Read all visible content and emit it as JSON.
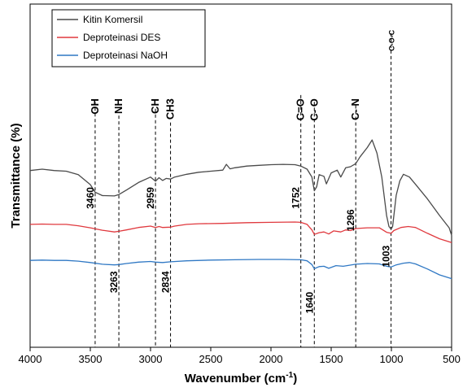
{
  "chart_data": {
    "type": "line",
    "title": "",
    "xlabel": "Wavenumber (cm",
    "xlabel_sup": "-1",
    "xlabel_close": ")",
    "ylabel": "Transmittance (%)",
    "xlim": [
      4000,
      500
    ],
    "x_reversed": true,
    "ylim": [
      0,
      100
    ],
    "x_ticks": [
      4000,
      3500,
      3000,
      2500,
      2000,
      1500,
      1000,
      500
    ],
    "x_tick_labels": [
      "4000",
      "3500",
      "3000",
      "2500",
      "2000",
      "1500",
      "1000",
      "500"
    ],
    "y_ticks_labeled": false,
    "grid": false,
    "legend_position": "top-left",
    "series": [
      {
        "name": "Kitin Komersil",
        "color": "#4a4a4a",
        "points": [
          [
            4000,
            51.5
          ],
          [
            3900,
            51.9
          ],
          [
            3800,
            51.5
          ],
          [
            3700,
            51.3
          ],
          [
            3600,
            50.3
          ],
          [
            3500,
            47.4
          ],
          [
            3460,
            45.2
          ],
          [
            3400,
            44.2
          ],
          [
            3300,
            44.1
          ],
          [
            3263,
            44.5
          ],
          [
            3200,
            45.8
          ],
          [
            3100,
            48.0
          ],
          [
            3000,
            49.6
          ],
          [
            2959,
            48.4
          ],
          [
            2930,
            49.4
          ],
          [
            2900,
            48.6
          ],
          [
            2870,
            49.2
          ],
          [
            2834,
            49.0
          ],
          [
            2800,
            49.6
          ],
          [
            2700,
            50.4
          ],
          [
            2600,
            51.0
          ],
          [
            2500,
            51.3
          ],
          [
            2400,
            51.6
          ],
          [
            2370,
            53.3
          ],
          [
            2340,
            52.0
          ],
          [
            2300,
            52.3
          ],
          [
            2200,
            52.8
          ],
          [
            2100,
            53.0
          ],
          [
            2000,
            53.2
          ],
          [
            1900,
            53.3
          ],
          [
            1800,
            53.2
          ],
          [
            1752,
            52.8
          ],
          [
            1700,
            51.9
          ],
          [
            1660,
            49.6
          ],
          [
            1640,
            45.6
          ],
          [
            1620,
            46.8
          ],
          [
            1600,
            50.3
          ],
          [
            1560,
            49.8
          ],
          [
            1540,
            47.6
          ],
          [
            1500,
            50.8
          ],
          [
            1450,
            51.6
          ],
          [
            1420,
            49.6
          ],
          [
            1380,
            52.3
          ],
          [
            1340,
            52.6
          ],
          [
            1296,
            53.5
          ],
          [
            1260,
            55.5
          ],
          [
            1200,
            58.2
          ],
          [
            1160,
            60.4
          ],
          [
            1120,
            56.6
          ],
          [
            1080,
            49.6
          ],
          [
            1040,
            38.4
          ],
          [
            1020,
            35.2
          ],
          [
            1003,
            34.4
          ],
          [
            990,
            35.2
          ],
          [
            960,
            44.3
          ],
          [
            930,
            48.5
          ],
          [
            900,
            50.4
          ],
          [
            850,
            49.6
          ],
          [
            800,
            47.5
          ],
          [
            700,
            43.2
          ],
          [
            600,
            38.4
          ],
          [
            520,
            34.8
          ],
          [
            500,
            32.6
          ]
        ]
      },
      {
        "name": "Deproteinasi DES",
        "color": "#e0393e",
        "points": [
          [
            4000,
            35.8
          ],
          [
            3900,
            35.9
          ],
          [
            3800,
            35.8
          ],
          [
            3700,
            35.8
          ],
          [
            3600,
            35.4
          ],
          [
            3500,
            34.8
          ],
          [
            3400,
            34.1
          ],
          [
            3300,
            33.6
          ],
          [
            3263,
            33.8
          ],
          [
            3200,
            34.2
          ],
          [
            3100,
            34.9
          ],
          [
            3000,
            35.3
          ],
          [
            2959,
            34.9
          ],
          [
            2930,
            35.2
          ],
          [
            2900,
            34.9
          ],
          [
            2834,
            35.0
          ],
          [
            2800,
            35.3
          ],
          [
            2700,
            35.8
          ],
          [
            2600,
            36.0
          ],
          [
            2400,
            36.1
          ],
          [
            2200,
            36.3
          ],
          [
            2000,
            36.4
          ],
          [
            1800,
            36.5
          ],
          [
            1752,
            36.4
          ],
          [
            1700,
            35.8
          ],
          [
            1660,
            34.2
          ],
          [
            1640,
            32.9
          ],
          [
            1600,
            33.4
          ],
          [
            1560,
            33.6
          ],
          [
            1520,
            33.0
          ],
          [
            1480,
            33.9
          ],
          [
            1420,
            33.6
          ],
          [
            1380,
            34.2
          ],
          [
            1340,
            34.0
          ],
          [
            1296,
            34.6
          ],
          [
            1200,
            34.8
          ],
          [
            1100,
            34.8
          ],
          [
            1040,
            33.5
          ],
          [
            1003,
            33.2
          ],
          [
            980,
            34.0
          ],
          [
            920,
            34.9
          ],
          [
            860,
            35.2
          ],
          [
            800,
            34.9
          ],
          [
            700,
            33.2
          ],
          [
            600,
            31.6
          ],
          [
            500,
            30.5
          ]
        ]
      },
      {
        "name": "Deproteinasi NaOH",
        "color": "#2f78c4",
        "points": [
          [
            4000,
            25.3
          ],
          [
            3900,
            25.4
          ],
          [
            3800,
            25.3
          ],
          [
            3700,
            25.3
          ],
          [
            3600,
            25.1
          ],
          [
            3500,
            24.7
          ],
          [
            3400,
            24.2
          ],
          [
            3300,
            24.0
          ],
          [
            3263,
            24.1
          ],
          [
            3200,
            24.4
          ],
          [
            3100,
            24.8
          ],
          [
            3000,
            25.0
          ],
          [
            2959,
            24.8
          ],
          [
            2900,
            24.7
          ],
          [
            2834,
            24.9
          ],
          [
            2700,
            25.2
          ],
          [
            2500,
            25.4
          ],
          [
            2300,
            25.5
          ],
          [
            2100,
            25.6
          ],
          [
            1900,
            25.6
          ],
          [
            1752,
            25.5
          ],
          [
            1700,
            25.2
          ],
          [
            1660,
            24.1
          ],
          [
            1640,
            22.9
          ],
          [
            1600,
            23.5
          ],
          [
            1560,
            23.6
          ],
          [
            1520,
            23.0
          ],
          [
            1460,
            23.8
          ],
          [
            1400,
            23.6
          ],
          [
            1296,
            24.2
          ],
          [
            1200,
            24.4
          ],
          [
            1100,
            24.3
          ],
          [
            1040,
            23.6
          ],
          [
            1003,
            23.4
          ],
          [
            960,
            24.0
          ],
          [
            900,
            24.5
          ],
          [
            850,
            24.7
          ],
          [
            800,
            24.3
          ],
          [
            700,
            22.8
          ],
          [
            600,
            21.1
          ],
          [
            500,
            20.0
          ]
        ]
      }
    ],
    "group_labels": [
      {
        "text": "OH",
        "x": 3460
      },
      {
        "text": "NH",
        "x": 3263
      },
      {
        "text": "CH",
        "x": 2959
      },
      {
        "text": "CH3",
        "x": 2834
      },
      {
        "text": "C=O",
        "x": 1752
      },
      {
        "text": "C- O",
        "x": 1640
      },
      {
        "text": "C- N",
        "x": 1296
      },
      {
        "text": "C-O-C",
        "x": 1003,
        "small": true
      }
    ],
    "peak_labels": [
      {
        "text": "3460",
        "x": 3460,
        "y": 43.5
      },
      {
        "text": "2959",
        "x": 2959,
        "y": 43.5
      },
      {
        "text": "1752",
        "x": 1752,
        "y": 43.5
      },
      {
        "text": "1296",
        "x": 1296,
        "y": 37.0
      },
      {
        "text": "1003",
        "x": 1003,
        "y": 26.5
      },
      {
        "text": "3263",
        "x": 3263,
        "y": 19.0
      },
      {
        "text": "2834",
        "x": 2834,
        "y": 19.0
      },
      {
        "text": "1640",
        "x": 1640,
        "y": 13.0
      }
    ],
    "guide_lines": [
      {
        "x": 3460,
        "top": 71.5,
        "bottom": 0
      },
      {
        "x": 3263,
        "top": 67.5,
        "bottom": 0
      },
      {
        "x": 2959,
        "top": 69.5,
        "bottom": 0
      },
      {
        "x": 2834,
        "top": 65.5,
        "bottom": 0
      },
      {
        "x": 1752,
        "top": 73.5,
        "bottom": 0
      },
      {
        "x": 1640,
        "top": 71.5,
        "bottom": 0
      },
      {
        "x": 1296,
        "top": 70.5,
        "bottom": 0
      },
      {
        "x": 1003,
        "top": 91.5,
        "bottom": 0
      }
    ]
  }
}
